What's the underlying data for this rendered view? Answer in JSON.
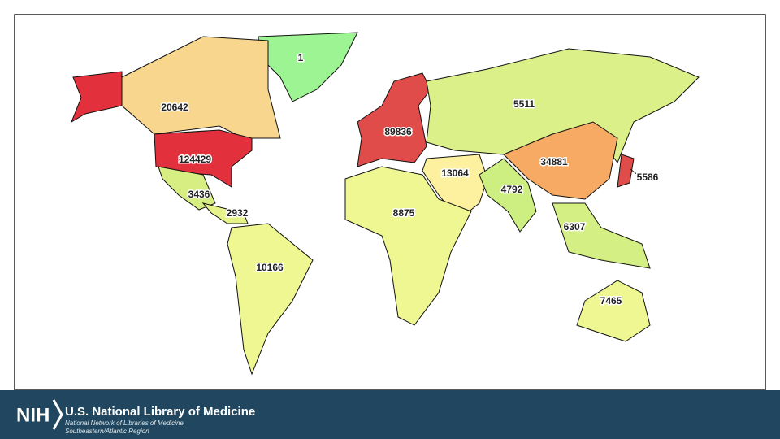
{
  "map": {
    "regions": [
      {
        "value": 1,
        "color": "#9cf492"
      },
      {
        "value": 20642,
        "color": "#f8d68e"
      },
      {
        "value": 124429,
        "color": "#e2303c"
      },
      {
        "value": 3436,
        "color": "#d6ee82"
      },
      {
        "value": 2932,
        "color": "#e6f38a"
      },
      {
        "value": 10166,
        "color": "#eef792"
      },
      {
        "value": 89836,
        "color": "#e04c4a"
      },
      {
        "value": 5511,
        "color": "#dcf08a"
      },
      {
        "value": 13064,
        "color": "#fdf1a0"
      },
      {
        "value": 34881,
        "color": "#f6aa64"
      },
      {
        "value": 4792,
        "color": "#cdee80"
      },
      {
        "value": 5586,
        "color": "#e04c4a"
      },
      {
        "value": 8875,
        "color": "#eef792"
      },
      {
        "value": 6307,
        "color": "#d4ef84"
      },
      {
        "value": 7465,
        "color": "#eef792"
      }
    ]
  },
  "footer": {
    "logo": "NIH",
    "title": "U.S. National Library of Medicine",
    "lines": [
      "National Network of Libraries of Medicine",
      "Southeastern/Atlantic Region"
    ]
  }
}
